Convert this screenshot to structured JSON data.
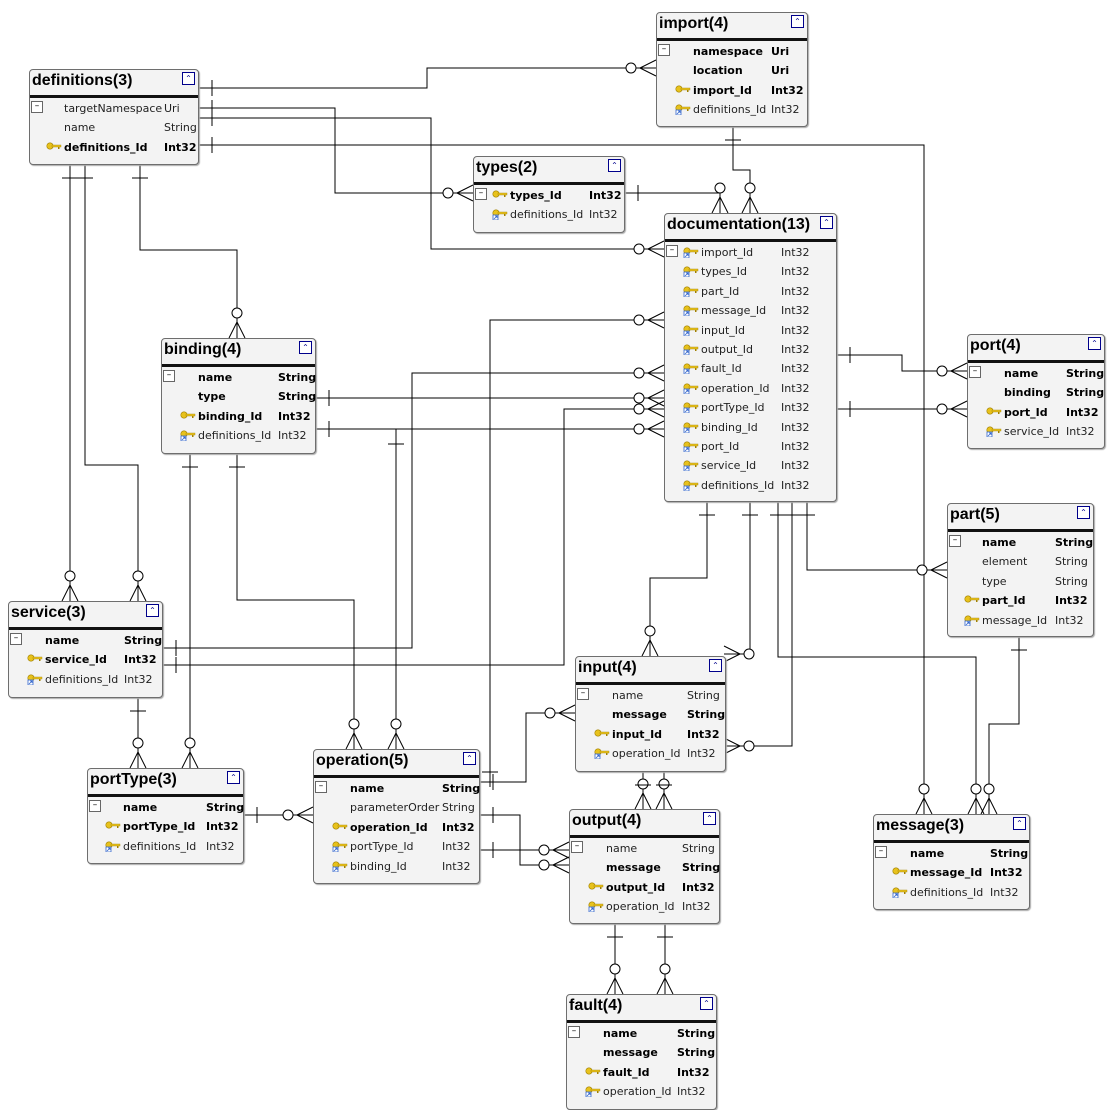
{
  "tables": [
    {
      "id": "definitions",
      "title": "definitions(3)",
      "fields": [
        {
          "name": "targetNamespace",
          "type": "Uri",
          "bold": false,
          "key": ""
        },
        {
          "name": "name",
          "type": "String",
          "bold": false,
          "key": ""
        },
        {
          "name": "definitions_Id",
          "type": "Int32",
          "bold": true,
          "key": "pk"
        }
      ]
    },
    {
      "id": "import",
      "title": "import(4)",
      "fields": [
        {
          "name": "namespace",
          "type": "Uri",
          "bold": true,
          "key": ""
        },
        {
          "name": "location",
          "type": "Uri",
          "bold": true,
          "key": ""
        },
        {
          "name": "import_Id",
          "type": "Int32",
          "bold": true,
          "key": "pk"
        },
        {
          "name": "definitions_Id",
          "type": "Int32",
          "bold": false,
          "key": "fk"
        }
      ]
    },
    {
      "id": "types",
      "title": "types(2)",
      "fields": [
        {
          "name": "types_Id",
          "type": "Int32",
          "bold": true,
          "key": "pk"
        },
        {
          "name": "definitions_Id",
          "type": "Int32",
          "bold": false,
          "key": "fk"
        }
      ]
    },
    {
      "id": "documentation",
      "title": "documentation(13)",
      "fields": [
        {
          "name": "import_Id",
          "type": "Int32",
          "bold": false,
          "key": "fk"
        },
        {
          "name": "types_Id",
          "type": "Int32",
          "bold": false,
          "key": "fk"
        },
        {
          "name": "part_Id",
          "type": "Int32",
          "bold": false,
          "key": "fk"
        },
        {
          "name": "message_Id",
          "type": "Int32",
          "bold": false,
          "key": "fk"
        },
        {
          "name": "input_Id",
          "type": "Int32",
          "bold": false,
          "key": "fk"
        },
        {
          "name": "output_Id",
          "type": "Int32",
          "bold": false,
          "key": "fk"
        },
        {
          "name": "fault_Id",
          "type": "Int32",
          "bold": false,
          "key": "fk"
        },
        {
          "name": "operation_Id",
          "type": "Int32",
          "bold": false,
          "key": "fk"
        },
        {
          "name": "portType_Id",
          "type": "Int32",
          "bold": false,
          "key": "fk"
        },
        {
          "name": "binding_Id",
          "type": "Int32",
          "bold": false,
          "key": "fk"
        },
        {
          "name": "port_Id",
          "type": "Int32",
          "bold": false,
          "key": "fk"
        },
        {
          "name": "service_Id",
          "type": "Int32",
          "bold": false,
          "key": "fk"
        },
        {
          "name": "definitions_Id",
          "type": "Int32",
          "bold": false,
          "key": "fk"
        }
      ]
    },
    {
      "id": "binding",
      "title": "binding(4)",
      "fields": [
        {
          "name": "name",
          "type": "String",
          "bold": true,
          "key": ""
        },
        {
          "name": "type",
          "type": "String",
          "bold": true,
          "key": ""
        },
        {
          "name": "binding_Id",
          "type": "Int32",
          "bold": true,
          "key": "pk"
        },
        {
          "name": "definitions_Id",
          "type": "Int32",
          "bold": false,
          "key": "fk"
        }
      ]
    },
    {
      "id": "port",
      "title": "port(4)",
      "fields": [
        {
          "name": "name",
          "type": "String",
          "bold": true,
          "key": ""
        },
        {
          "name": "binding",
          "type": "String",
          "bold": true,
          "key": ""
        },
        {
          "name": "port_Id",
          "type": "Int32",
          "bold": true,
          "key": "pk"
        },
        {
          "name": "service_Id",
          "type": "Int32",
          "bold": false,
          "key": "fk"
        }
      ]
    },
    {
      "id": "part",
      "title": "part(5)",
      "fields": [
        {
          "name": "name",
          "type": "String",
          "bold": true,
          "key": ""
        },
        {
          "name": "element",
          "type": "String",
          "bold": false,
          "key": ""
        },
        {
          "name": "type",
          "type": "String",
          "bold": false,
          "key": ""
        },
        {
          "name": "part_Id",
          "type": "Int32",
          "bold": true,
          "key": "pk"
        },
        {
          "name": "message_Id",
          "type": "Int32",
          "bold": false,
          "key": "fk"
        }
      ]
    },
    {
      "id": "service",
      "title": "service(3)",
      "fields": [
        {
          "name": "name",
          "type": "String",
          "bold": true,
          "key": ""
        },
        {
          "name": "service_Id",
          "type": "Int32",
          "bold": true,
          "key": "pk"
        },
        {
          "name": "definitions_Id",
          "type": "Int32",
          "bold": false,
          "key": "fk"
        }
      ]
    },
    {
      "id": "input",
      "title": "input(4)",
      "fields": [
        {
          "name": "name",
          "type": "String",
          "bold": false,
          "key": ""
        },
        {
          "name": "message",
          "type": "String",
          "bold": true,
          "key": ""
        },
        {
          "name": "input_Id",
          "type": "Int32",
          "bold": true,
          "key": "pk"
        },
        {
          "name": "operation_Id",
          "type": "Int32",
          "bold": false,
          "key": "fk"
        }
      ]
    },
    {
      "id": "portType",
      "title": "portType(3)",
      "fields": [
        {
          "name": "name",
          "type": "String",
          "bold": true,
          "key": ""
        },
        {
          "name": "portType_Id",
          "type": "Int32",
          "bold": true,
          "key": "pk"
        },
        {
          "name": "definitions_Id",
          "type": "Int32",
          "bold": false,
          "key": "fk"
        }
      ]
    },
    {
      "id": "operation",
      "title": "operation(5)",
      "fields": [
        {
          "name": "name",
          "type": "String",
          "bold": true,
          "key": ""
        },
        {
          "name": "parameterOrder",
          "type": "String",
          "bold": false,
          "key": ""
        },
        {
          "name": "operation_Id",
          "type": "Int32",
          "bold": true,
          "key": "pk"
        },
        {
          "name": "portType_Id",
          "type": "Int32",
          "bold": false,
          "key": "fk"
        },
        {
          "name": "binding_Id",
          "type": "Int32",
          "bold": false,
          "key": "fk"
        }
      ]
    },
    {
      "id": "output",
      "title": "output(4)",
      "fields": [
        {
          "name": "name",
          "type": "String",
          "bold": false,
          "key": ""
        },
        {
          "name": "message",
          "type": "String",
          "bold": true,
          "key": ""
        },
        {
          "name": "output_Id",
          "type": "Int32",
          "bold": true,
          "key": "pk"
        },
        {
          "name": "operation_Id",
          "type": "Int32",
          "bold": false,
          "key": "fk"
        }
      ]
    },
    {
      "id": "message",
      "title": "message(3)",
      "fields": [
        {
          "name": "name",
          "type": "String",
          "bold": true,
          "key": ""
        },
        {
          "name": "message_Id",
          "type": "Int32",
          "bold": true,
          "key": "pk"
        },
        {
          "name": "definitions_Id",
          "type": "Int32",
          "bold": false,
          "key": "fk"
        }
      ]
    },
    {
      "id": "fault",
      "title": "fault(4)",
      "fields": [
        {
          "name": "name",
          "type": "String",
          "bold": true,
          "key": ""
        },
        {
          "name": "message",
          "type": "String",
          "bold": true,
          "key": ""
        },
        {
          "name": "fault_Id",
          "type": "Int32",
          "bold": true,
          "key": "pk"
        },
        {
          "name": "operation_Id",
          "type": "Int32",
          "bold": false,
          "key": "fk"
        }
      ]
    }
  ],
  "colors": {
    "key": "#e8c21c",
    "collapse": "#00008b",
    "line": "#000000"
  }
}
